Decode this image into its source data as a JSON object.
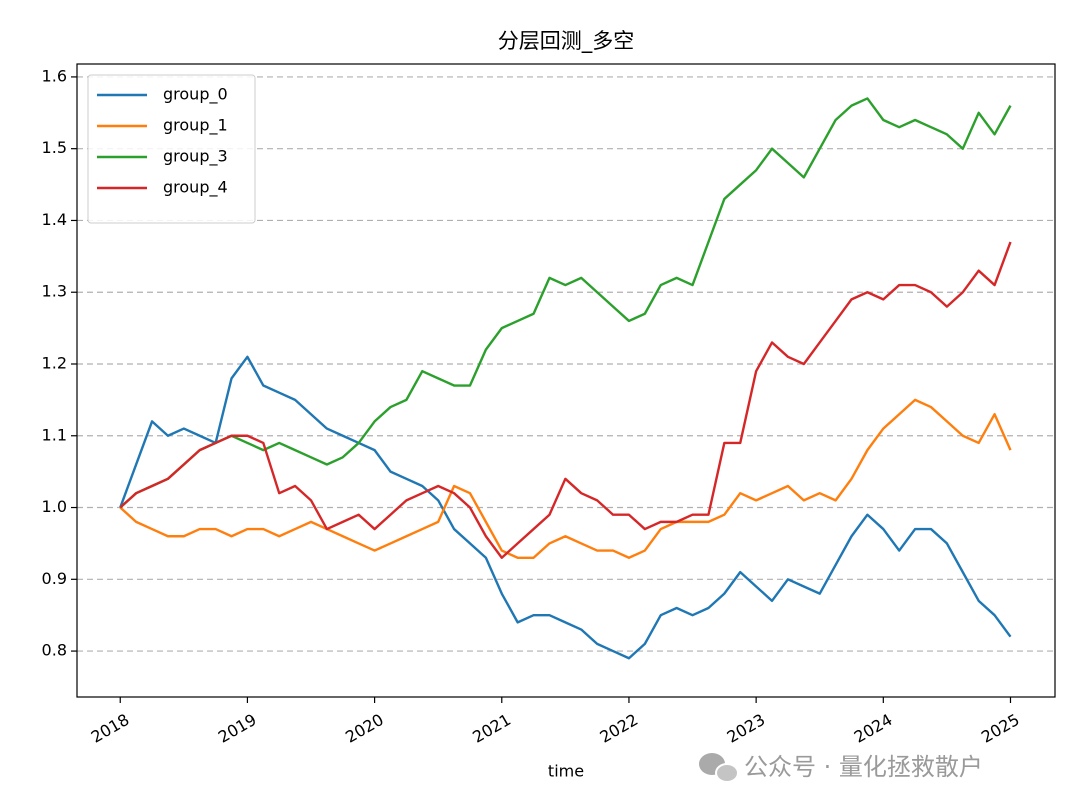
{
  "chart_data": {
    "type": "line",
    "title": "分层回测_多空",
    "xlabel": "time",
    "watermark": "公众号 · 量化拯救散户",
    "x": [
      2018,
      2018.125,
      2018.25,
      2018.375,
      2018.5,
      2018.625,
      2018.75,
      2018.875,
      2019,
      2019.125,
      2019.25,
      2019.375,
      2019.5,
      2019.625,
      2019.75,
      2019.875,
      2020,
      2020.125,
      2020.25,
      2020.375,
      2020.5,
      2020.625,
      2020.75,
      2020.875,
      2021,
      2021.125,
      2021.25,
      2021.375,
      2021.5,
      2021.625,
      2021.75,
      2021.875,
      2022,
      2022.125,
      2022.25,
      2022.375,
      2022.5,
      2022.625,
      2022.75,
      2022.875,
      2023,
      2023.125,
      2023.25,
      2023.375,
      2023.5,
      2023.625,
      2023.75,
      2023.875,
      2024,
      2024.125,
      2024.25,
      2024.375,
      2024.5,
      2024.625,
      2024.75,
      2024.875,
      2025
    ],
    "series": [
      {
        "name": "group_0",
        "color": "#1f77b4",
        "values": [
          1.0,
          1.06,
          1.12,
          1.1,
          1.11,
          1.1,
          1.09,
          1.18,
          1.21,
          1.17,
          1.16,
          1.15,
          1.13,
          1.11,
          1.1,
          1.09,
          1.08,
          1.05,
          1.04,
          1.03,
          1.01,
          0.97,
          0.95,
          0.93,
          0.88,
          0.84,
          0.85,
          0.85,
          0.84,
          0.83,
          0.81,
          0.8,
          0.79,
          0.81,
          0.85,
          0.86,
          0.85,
          0.86,
          0.88,
          0.91,
          0.89,
          0.87,
          0.9,
          0.89,
          0.88,
          0.92,
          0.96,
          0.99,
          0.97,
          0.94,
          0.97,
          0.97,
          0.95,
          0.91,
          0.87,
          0.85,
          0.82
        ]
      },
      {
        "name": "group_1",
        "color": "#ff7f0e",
        "values": [
          1.0,
          0.98,
          0.97,
          0.96,
          0.96,
          0.97,
          0.97,
          0.96,
          0.97,
          0.97,
          0.96,
          0.97,
          0.98,
          0.97,
          0.96,
          0.95,
          0.94,
          0.95,
          0.96,
          0.97,
          0.98,
          1.03,
          1.02,
          0.98,
          0.94,
          0.93,
          0.93,
          0.95,
          0.96,
          0.95,
          0.94,
          0.94,
          0.93,
          0.94,
          0.97,
          0.98,
          0.98,
          0.98,
          0.99,
          1.02,
          1.01,
          1.02,
          1.03,
          1.01,
          1.02,
          1.01,
          1.04,
          1.08,
          1.11,
          1.13,
          1.15,
          1.14,
          1.12,
          1.1,
          1.09,
          1.13,
          1.08
        ]
      },
      {
        "name": "group_3",
        "color": "#2ca02c",
        "values": [
          1.0,
          1.02,
          1.03,
          1.04,
          1.06,
          1.08,
          1.09,
          1.1,
          1.09,
          1.08,
          1.09,
          1.08,
          1.07,
          1.06,
          1.07,
          1.09,
          1.12,
          1.14,
          1.15,
          1.19,
          1.18,
          1.17,
          1.17,
          1.22,
          1.25,
          1.26,
          1.27,
          1.32,
          1.31,
          1.32,
          1.3,
          1.28,
          1.26,
          1.27,
          1.31,
          1.32,
          1.31,
          1.37,
          1.43,
          1.45,
          1.47,
          1.5,
          1.48,
          1.46,
          1.5,
          1.54,
          1.56,
          1.57,
          1.54,
          1.53,
          1.54,
          1.53,
          1.52,
          1.5,
          1.55,
          1.52,
          1.56
        ]
      },
      {
        "name": "group_4",
        "color": "#d62728",
        "values": [
          1.0,
          1.02,
          1.03,
          1.04,
          1.06,
          1.08,
          1.09,
          1.1,
          1.1,
          1.09,
          1.02,
          1.03,
          1.01,
          0.97,
          0.98,
          0.99,
          0.97,
          0.99,
          1.01,
          1.02,
          1.03,
          1.02,
          1.0,
          0.96,
          0.93,
          0.95,
          0.97,
          0.99,
          1.04,
          1.02,
          1.01,
          0.99,
          0.99,
          0.97,
          0.98,
          0.98,
          0.99,
          0.99,
          1.09,
          1.09,
          1.19,
          1.23,
          1.21,
          1.2,
          1.23,
          1.26,
          1.29,
          1.3,
          1.29,
          1.31,
          1.31,
          1.3,
          1.28,
          1.3,
          1.33,
          1.31,
          1.37
        ]
      }
    ],
    "xlim": [
      2017.66,
      2025.35
    ],
    "xticks": [
      2018,
      2019,
      2020,
      2021,
      2022,
      2023,
      2024,
      2025
    ],
    "ylim": [
      0.736,
      1.618
    ],
    "yticks": [
      0.8,
      0.9,
      {
        "value": 1,
        "label": "1.0"
      },
      1.1,
      1.2,
      1.3,
      1.4,
      1.5,
      1.6
    ],
    "grid": "y",
    "legend": "upper-left"
  }
}
